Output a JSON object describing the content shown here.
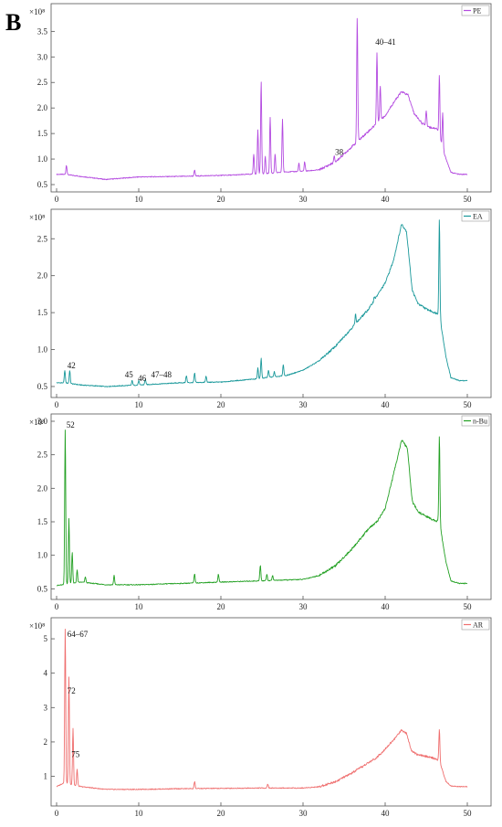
{
  "figure_label": "B",
  "chart_data": [
    {
      "type": "line",
      "legend": "PE",
      "legend_position": "top-right",
      "color": "#b44be0",
      "exponent": "×10⁸",
      "xlim": [
        0,
        50
      ],
      "ylim": [
        0.5,
        3.9
      ],
      "xticks": [
        0,
        10,
        20,
        30,
        40,
        50
      ],
      "yticks": [
        0.5,
        1.0,
        1.5,
        2.0,
        2.5,
        3.0,
        3.5
      ],
      "ytick_labels": [
        "0.5",
        "1.0",
        "1.5",
        "2.0",
        "2.5",
        "3.0",
        "3.5"
      ],
      "baseline": [
        [
          0,
          0.7
        ],
        [
          1,
          0.7
        ],
        [
          3,
          0.66
        ],
        [
          6,
          0.6
        ],
        [
          10,
          0.65
        ],
        [
          15,
          0.66
        ],
        [
          20,
          0.68
        ],
        [
          22,
          0.69
        ],
        [
          23,
          0.7
        ],
        [
          26,
          0.72
        ],
        [
          28,
          0.75
        ],
        [
          30,
          0.76
        ],
        [
          32,
          0.79
        ],
        [
          34,
          0.95
        ],
        [
          36,
          1.25
        ],
        [
          38,
          1.55
        ],
        [
          40,
          1.85
        ],
        [
          41,
          2.1
        ],
        [
          42,
          2.32
        ],
        [
          42.8,
          2.25
        ],
        [
          43.5,
          1.9
        ],
        [
          44.5,
          1.7
        ],
        [
          45.5,
          1.62
        ],
        [
          46.3,
          1.6
        ],
        [
          47.2,
          1.1
        ],
        [
          48,
          0.74
        ],
        [
          49,
          0.7
        ],
        [
          50,
          0.7
        ]
      ],
      "peaks": [
        [
          1.2,
          0.88
        ],
        [
          16.8,
          0.78
        ],
        [
          24.0,
          1.1
        ],
        [
          24.5,
          1.58
        ],
        [
          24.9,
          2.52
        ],
        [
          25.4,
          1.05
        ],
        [
          26.0,
          1.82
        ],
        [
          26.6,
          1.1
        ],
        [
          27.5,
          1.78
        ],
        [
          29.5,
          0.92
        ],
        [
          30.2,
          0.95
        ],
        [
          33.8,
          1.05
        ],
        [
          36.6,
          3.78
        ],
        [
          38.4,
          1.45
        ],
        [
          39.0,
          3.08
        ],
        [
          39.4,
          2.45
        ],
        [
          40.2,
          1.7
        ],
        [
          45.0,
          1.95
        ],
        [
          46.6,
          2.65
        ],
        [
          47.0,
          1.9
        ]
      ],
      "annotations": [
        {
          "x": 33.9,
          "y": 1.05,
          "text": "38"
        },
        {
          "x": 38.8,
          "y": 3.2,
          "text": "40–41"
        }
      ]
    },
    {
      "type": "line",
      "legend": "EA",
      "legend_position": "top-right",
      "color": "#19989a",
      "exponent": "×10⁸",
      "xlim": [
        0,
        50
      ],
      "ylim": [
        0.45,
        2.8
      ],
      "xticks": [
        0,
        10,
        20,
        30,
        40,
        50
      ],
      "yticks": [
        0.5,
        1.0,
        1.5,
        2.0,
        2.5
      ],
      "ytick_labels": [
        "0.5",
        "1.0",
        "1.5",
        "2.0",
        "2.5"
      ],
      "baseline": [
        [
          0,
          0.55
        ],
        [
          1,
          0.55
        ],
        [
          3,
          0.52
        ],
        [
          6,
          0.5
        ],
        [
          10,
          0.52
        ],
        [
          15,
          0.55
        ],
        [
          20,
          0.56
        ],
        [
          24,
          0.6
        ],
        [
          28,
          0.65
        ],
        [
          30,
          0.72
        ],
        [
          32,
          0.85
        ],
        [
          34,
          1.05
        ],
        [
          36,
          1.3
        ],
        [
          38,
          1.55
        ],
        [
          40,
          1.9
        ],
        [
          41,
          2.2
        ],
        [
          42,
          2.7
        ],
        [
          42.6,
          2.6
        ],
        [
          43.3,
          1.8
        ],
        [
          44,
          1.62
        ],
        [
          45,
          1.55
        ],
        [
          46,
          1.5
        ],
        [
          46.6,
          1.48
        ],
        [
          47.4,
          0.9
        ],
        [
          48,
          0.62
        ],
        [
          49,
          0.58
        ],
        [
          50,
          0.58
        ]
      ],
      "peaks": [
        [
          1.0,
          0.72
        ],
        [
          1.6,
          0.72
        ],
        [
          9.2,
          0.58
        ],
        [
          10.0,
          0.58
        ],
        [
          10.8,
          0.6
        ],
        [
          15.8,
          0.65
        ],
        [
          16.8,
          0.68
        ],
        [
          18.2,
          0.64
        ],
        [
          24.5,
          0.75
        ],
        [
          24.9,
          0.88
        ],
        [
          25.8,
          0.72
        ],
        [
          26.5,
          0.7
        ],
        [
          27.6,
          0.8
        ],
        [
          36.4,
          1.48
        ],
        [
          38.7,
          1.72
        ],
        [
          39.2,
          1.75
        ],
        [
          46.6,
          2.76
        ]
      ],
      "annotations": [
        {
          "x": 1.3,
          "y": 0.72,
          "text": "42"
        },
        {
          "x": 8.3,
          "y": 0.6,
          "text": "45"
        },
        {
          "x": 9.9,
          "y": 0.55,
          "text": "46"
        },
        {
          "x": 11.5,
          "y": 0.6,
          "text": "47–48"
        }
      ]
    },
    {
      "type": "line",
      "legend": "n-Bu",
      "legend_position": "top-right",
      "color": "#22a022",
      "exponent": "×10⁸",
      "xlim": [
        0,
        50
      ],
      "ylim": [
        0.45,
        3.0
      ],
      "xticks": [
        0,
        10,
        20,
        30,
        40,
        50
      ],
      "yticks": [
        0.5,
        1.0,
        1.5,
        2.0,
        2.5,
        3.0
      ],
      "ytick_labels": [
        "0.5",
        "1.0",
        "1.5",
        "2.0",
        "2.5",
        "3.0"
      ],
      "baseline": [
        [
          0,
          0.55
        ],
        [
          0.8,
          0.56
        ],
        [
          3,
          0.6
        ],
        [
          6,
          0.56
        ],
        [
          10,
          0.56
        ],
        [
          15,
          0.58
        ],
        [
          20,
          0.6
        ],
        [
          25,
          0.62
        ],
        [
          30,
          0.64
        ],
        [
          32,
          0.7
        ],
        [
          34,
          0.85
        ],
        [
          36,
          1.1
        ],
        [
          38,
          1.4
        ],
        [
          39,
          1.5
        ],
        [
          40,
          1.7
        ],
        [
          41,
          2.2
        ],
        [
          42,
          2.72
        ],
        [
          42.7,
          2.6
        ],
        [
          43.3,
          1.8
        ],
        [
          44,
          1.65
        ],
        [
          45,
          1.58
        ],
        [
          46,
          1.52
        ],
        [
          46.6,
          1.5
        ],
        [
          47.4,
          0.9
        ],
        [
          48,
          0.62
        ],
        [
          49,
          0.58
        ],
        [
          50,
          0.58
        ]
      ],
      "peaks": [
        [
          1.05,
          2.88
        ],
        [
          1.5,
          1.55
        ],
        [
          1.9,
          1.05
        ],
        [
          2.5,
          0.78
        ],
        [
          3.5,
          0.68
        ],
        [
          7.0,
          0.7
        ],
        [
          16.8,
          0.72
        ],
        [
          19.7,
          0.72
        ],
        [
          24.8,
          0.85
        ],
        [
          25.6,
          0.72
        ],
        [
          26.3,
          0.7
        ],
        [
          46.6,
          2.78
        ]
      ],
      "annotations": [
        {
          "x": 1.2,
          "y": 2.88,
          "text": "52"
        }
      ]
    },
    {
      "type": "line",
      "legend": "AR",
      "legend_position": "top-right",
      "color": "#ef6f6f",
      "exponent": "×10⁸",
      "xlim": [
        0,
        50
      ],
      "ylim": [
        0.35,
        5.4
      ],
      "xticks": [
        0,
        10,
        20,
        30,
        40,
        50
      ],
      "yticks": [
        1,
        2,
        3,
        4,
        5
      ],
      "ytick_labels": [
        "1",
        "2",
        "3",
        "4",
        "5"
      ],
      "baseline": [
        [
          0,
          0.7
        ],
        [
          0.8,
          0.8
        ],
        [
          3,
          0.7
        ],
        [
          6,
          0.62
        ],
        [
          10,
          0.62
        ],
        [
          15,
          0.64
        ],
        [
          20,
          0.65
        ],
        [
          25,
          0.66
        ],
        [
          30,
          0.66
        ],
        [
          32,
          0.7
        ],
        [
          34,
          0.85
        ],
        [
          36,
          1.1
        ],
        [
          38,
          1.4
        ],
        [
          39,
          1.55
        ],
        [
          40,
          1.8
        ],
        [
          41,
          2.05
        ],
        [
          42,
          2.35
        ],
        [
          42.6,
          2.25
        ],
        [
          43.2,
          1.75
        ],
        [
          44,
          1.62
        ],
        [
          45,
          1.58
        ],
        [
          46,
          1.52
        ],
        [
          46.6,
          1.45
        ],
        [
          47.4,
          0.85
        ],
        [
          48,
          0.72
        ],
        [
          49,
          0.7
        ],
        [
          50,
          0.7
        ]
      ],
      "peaks": [
        [
          1.05,
          5.3
        ],
        [
          1.5,
          3.9
        ],
        [
          2.0,
          2.4
        ],
        [
          2.5,
          1.2
        ],
        [
          16.8,
          0.85
        ],
        [
          25.7,
          0.78
        ],
        [
          46.6,
          2.35
        ]
      ],
      "annotations": [
        {
          "x": 1.3,
          "y": 5.0,
          "text": "64–67"
        },
        {
          "x": 1.3,
          "y": 3.35,
          "text": "72"
        },
        {
          "x": 1.8,
          "y": 1.5,
          "text": "75"
        }
      ]
    }
  ]
}
